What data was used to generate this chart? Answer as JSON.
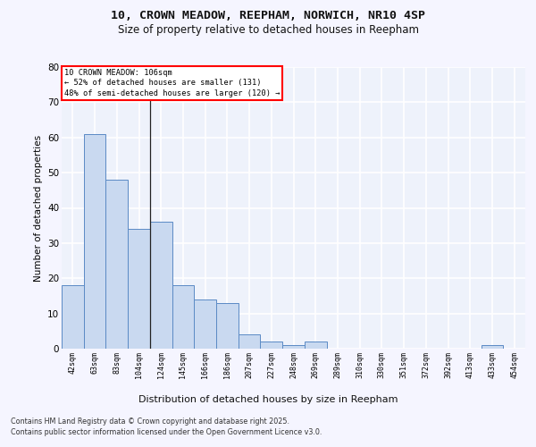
{
  "title_line1": "10, CROWN MEADOW, REEPHAM, NORWICH, NR10 4SP",
  "title_line2": "Size of property relative to detached houses in Reepham",
  "xlabel": "Distribution of detached houses by size in Reepham",
  "ylabel": "Number of detached properties",
  "bar_labels": [
    "42sqm",
    "63sqm",
    "83sqm",
    "104sqm",
    "124sqm",
    "145sqm",
    "166sqm",
    "186sqm",
    "207sqm",
    "227sqm",
    "248sqm",
    "269sqm",
    "289sqm",
    "310sqm",
    "330sqm",
    "351sqm",
    "372sqm",
    "392sqm",
    "413sqm",
    "433sqm",
    "454sqm"
  ],
  "bar_values": [
    18,
    61,
    48,
    34,
    36,
    18,
    14,
    13,
    4,
    2,
    1,
    2,
    0,
    0,
    0,
    0,
    0,
    0,
    0,
    1,
    0
  ],
  "bar_color": "#c9d9f0",
  "bar_edge_color": "#5b8ac5",
  "background_color": "#eef2fb",
  "grid_color": "#ffffff",
  "ylim": [
    0,
    80
  ],
  "yticks": [
    0,
    10,
    20,
    30,
    40,
    50,
    60,
    70,
    80
  ],
  "annotation_text_line1": "10 CROWN MEADOW: 106sqm",
  "annotation_text_line2": "← 52% of detached houses are smaller (131)",
  "annotation_text_line3": "48% of semi-detached houses are larger (120) →",
  "footer_line1": "Contains HM Land Registry data © Crown copyright and database right 2025.",
  "footer_line2": "Contains public sector information licensed under the Open Government Licence v3.0."
}
